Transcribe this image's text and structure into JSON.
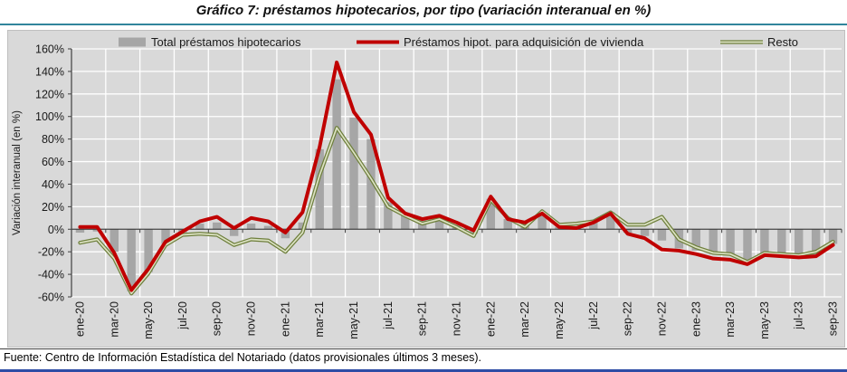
{
  "page": {
    "title": "Gráfico 7: préstamos hipotecarios, por tipo (variación interanual en %)",
    "source": "Fuente: Centro de Información Estadística del Notariado (datos provisionales últimos 3 meses)."
  },
  "colors": {
    "bar": "#A6A6A6",
    "vivienda_line": "#C00000",
    "resto_edge": "#6E7F3C",
    "resto_core": "#DCE2C4",
    "plot_bg": "#D9D9D9",
    "gridline": "#FFFFFF",
    "axis": "#404040",
    "text": "#1a1a1a",
    "title_rule": "#31859C",
    "footer_rule": "#2E4DA6"
  },
  "chart_data": {
    "type": "bar",
    "subtype": "bar+line combo, monthly year-over-year % change",
    "title": "Gráfico 7: préstamos hipotecarios, por tipo (variación interanual en %)",
    "ylabel": "Variación interanual (en %)",
    "ylim": [
      -60,
      160
    ],
    "ytick_step": 20,
    "ytick_labels": [
      "160%",
      "140%",
      "120%",
      "100%",
      "80%",
      "60%",
      "40%",
      "20%",
      "0%",
      "-20%",
      "-40%",
      "-60%"
    ],
    "grid": true,
    "legend_position": "top",
    "xtick_shown_every": 2,
    "categories": [
      "ene-20",
      "feb-20",
      "mar-20",
      "abr-20",
      "may-20",
      "jun-20",
      "jul-20",
      "ago-20",
      "sep-20",
      "oct-20",
      "nov-20",
      "dic-20",
      "ene-21",
      "feb-21",
      "mar-21",
      "abr-21",
      "may-21",
      "jun-21",
      "jul-21",
      "ago-21",
      "sep-21",
      "oct-21",
      "nov-21",
      "dic-21",
      "ene-22",
      "feb-22",
      "mar-22",
      "abr-22",
      "may-22",
      "jun-22",
      "jul-22",
      "ago-22",
      "sep-22",
      "oct-22",
      "nov-22",
      "dic-22",
      "ene-23",
      "feb-23",
      "mar-23",
      "abr-23",
      "may-23",
      "jun-23",
      "jul-23",
      "ago-23",
      "sep-23"
    ],
    "series": [
      {
        "name": "Total préstamos hipotecarios",
        "type": "bar",
        "values": [
          -3,
          -2,
          -20,
          -55,
          -38,
          -13,
          -3,
          5,
          6,
          -6,
          5,
          3,
          -8,
          6,
          71,
          133,
          99,
          80,
          24,
          13,
          8,
          11,
          4,
          -4,
          27,
          9,
          5,
          14,
          2,
          2,
          6,
          15,
          -3,
          -6,
          -10,
          -17,
          -19,
          -22,
          -23,
          -30,
          -22,
          -23,
          -24,
          -23,
          -13
        ]
      },
      {
        "name": "Préstamos hipot. para adquisición de vivienda",
        "type": "line",
        "values": [
          2,
          2,
          -21,
          -54,
          -35,
          -11,
          -2,
          7,
          11,
          1,
          10,
          7,
          -3,
          15,
          73,
          148,
          104,
          84,
          28,
          14,
          9,
          12,
          6,
          -1,
          29,
          9,
          6,
          14,
          2,
          1,
          6,
          14,
          -4,
          -8,
          -18,
          -19,
          -22,
          -26,
          -27,
          -31,
          -23,
          -24,
          -25,
          -24,
          -14
        ]
      },
      {
        "name": "Resto",
        "type": "line",
        "values": [
          -12,
          -9,
          -26,
          -57,
          -39,
          -14,
          -5,
          -4,
          -5,
          -14,
          -9,
          -10,
          -20,
          -3,
          48,
          90,
          68,
          45,
          20,
          12,
          5,
          9,
          2,
          -6,
          26,
          10,
          2,
          16,
          4,
          5,
          7,
          15,
          4,
          4,
          11,
          -9,
          -16,
          -21,
          -22,
          -29,
          -21,
          -22,
          -23,
          -20,
          -11
        ]
      }
    ]
  }
}
